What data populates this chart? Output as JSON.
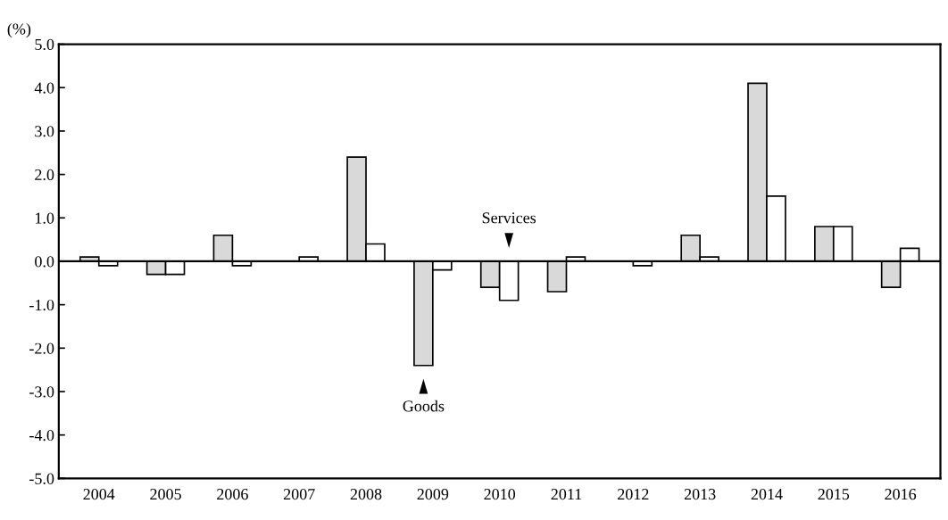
{
  "chart_data": {
    "type": "bar",
    "ylabel": "(%)",
    "categories": [
      "2004",
      "2005",
      "2006",
      "2007",
      "2008",
      "2009",
      "2010",
      "2011",
      "2012",
      "2013",
      "2014",
      "2015",
      "2016"
    ],
    "series": [
      {
        "color": "#d9d9d9",
        "values": [
          0.1,
          -0.3,
          0.6,
          0,
          2.4,
          -2.4,
          -0.6,
          -0.7,
          0,
          0.6,
          4.1,
          0.8,
          -0.6
        ]
      },
      {
        "color": "#ffffff",
        "values": [
          -0.1,
          -0.3,
          -0.1,
          0.1,
          0.4,
          -0.2,
          -0.9,
          0.1,
          -0.1,
          0.1,
          1.5,
          0.8,
          0.3
        ]
      }
    ],
    "ylim": [
      -5,
      5
    ],
    "yticks": [
      {
        "value": -5,
        "label": "-5.0"
      },
      {
        "value": -4,
        "label": "-4.0"
      },
      {
        "value": -3,
        "label": "-3.0"
      },
      {
        "value": -2,
        "label": "-2.0"
      },
      {
        "value": -1,
        "label": "-1.0"
      },
      {
        "value": 0,
        "label": "0.0"
      },
      {
        "value": 1,
        "label": "1.0"
      },
      {
        "value": 2,
        "label": "2.0"
      },
      {
        "value": 3,
        "label": "3.0"
      },
      {
        "value": 4,
        "label": "4.0"
      },
      {
        "value": 5,
        "label": "5.0"
      }
    ],
    "ref_lines": [
      {
        "axis": "y",
        "value": 0,
        "color": "#000000"
      }
    ],
    "annotations": [
      {
        "text": "Goods",
        "x": "2009",
        "y": -2.4
      },
      {
        "text": "Services",
        "x": "2010",
        "y": 0
      }
    ],
    "grid": false,
    "legend": false
  }
}
